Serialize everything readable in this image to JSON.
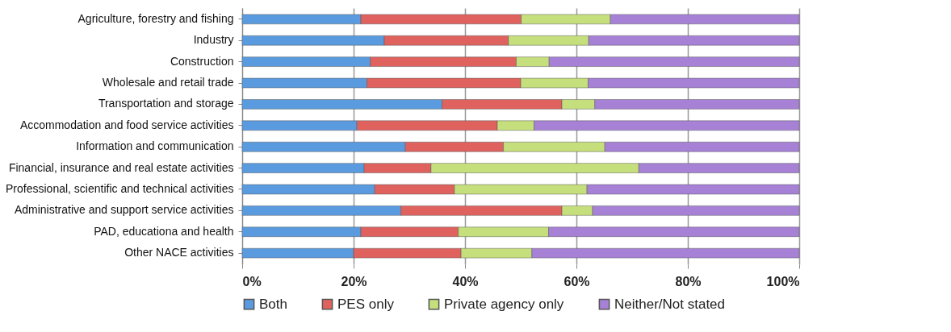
{
  "chart_data": {
    "type": "bar",
    "orientation": "horizontal",
    "stacked": true,
    "categories": [
      "Agriculture, forestry and fishing",
      "Industry",
      "Construction",
      "Wholesale and retail trade",
      "Transportation and storage",
      "Accommodation and food service activities",
      "Information and communication",
      "Financial, insurance and real estate activities",
      "Professional, scientific and technical activities",
      "Administrative and support service activities",
      "PAD, educationa and health",
      "Other NACE activities"
    ],
    "series": [
      {
        "name": "Both",
        "color": "#5a9be0",
        "values": [
          21.3,
          25.5,
          23.0,
          22.4,
          35.9,
          20.6,
          29.3,
          21.9,
          23.8,
          28.5,
          21.3,
          20.0
        ]
      },
      {
        "name": "PES only",
        "color": "#e0625e",
        "values": [
          28.8,
          22.3,
          26.2,
          27.6,
          21.5,
          25.2,
          17.6,
          12.0,
          14.3,
          28.9,
          17.5,
          19.3
        ]
      },
      {
        "name": "Private agency only",
        "color": "#c5df7c",
        "values": [
          16.0,
          14.4,
          5.9,
          12.1,
          5.9,
          6.6,
          18.2,
          37.3,
          23.8,
          5.5,
          16.2,
          12.7
        ]
      },
      {
        "name": "Neither/Not stated",
        "color": "#a681d6",
        "values": [
          33.9,
          37.8,
          44.9,
          37.9,
          36.7,
          47.6,
          34.9,
          28.8,
          38.1,
          37.1,
          45.0,
          48.0
        ]
      }
    ],
    "xlim": [
      0,
      100
    ],
    "xticks": [
      {
        "value": 0,
        "label": "0%"
      },
      {
        "value": 20,
        "label": "20%"
      },
      {
        "value": 40,
        "label": "40%"
      },
      {
        "value": 60,
        "label": "60%"
      },
      {
        "value": 80,
        "label": "80%"
      },
      {
        "value": 100,
        "label": "100%"
      }
    ],
    "grid": "x",
    "legend": "bottom"
  }
}
